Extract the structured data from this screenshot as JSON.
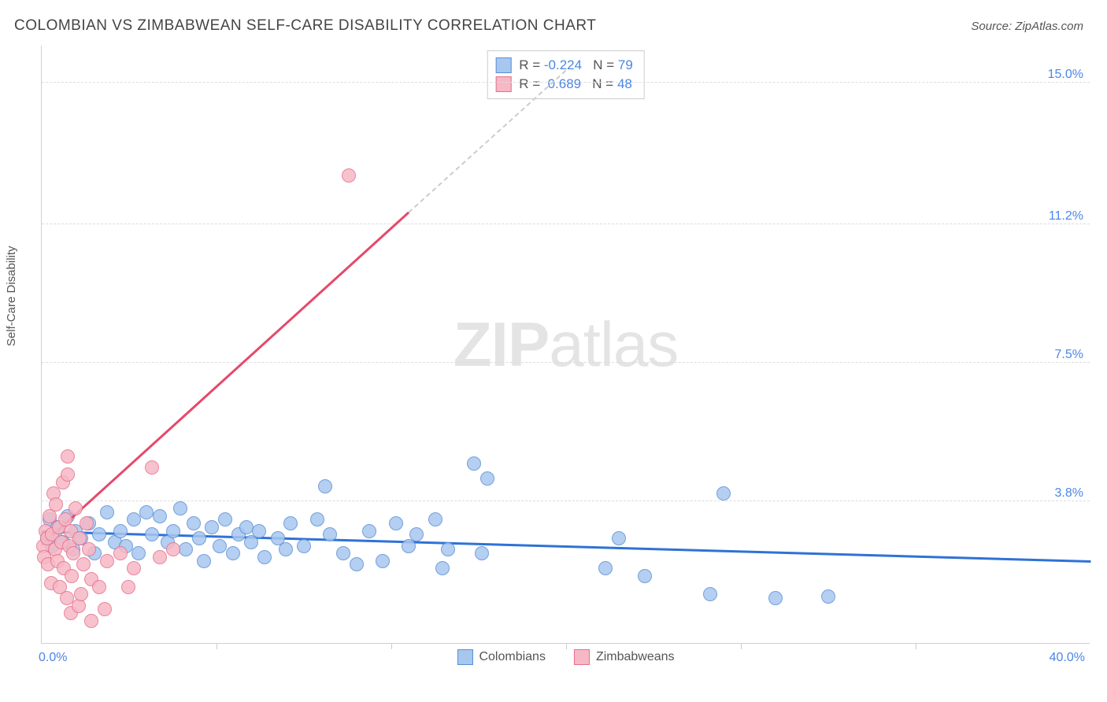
{
  "header": {
    "title": "COLOMBIAN VS ZIMBABWEAN SELF-CARE DISABILITY CORRELATION CHART",
    "source_prefix": "Source: ",
    "source_name": "ZipAtlas.com"
  },
  "watermark": {
    "zip": "ZIP",
    "atlas": "atlas"
  },
  "chart": {
    "type": "scatter",
    "background_color": "#ffffff",
    "grid_color": "#dddddd",
    "axis_color": "#d0d0d0",
    "ylabel": "Self-Care Disability",
    "label_fontsize": 15,
    "tick_color": "#4a86e8",
    "tick_fontsize": 16,
    "xlim": [
      0.0,
      40.0
    ],
    "ylim": [
      0.0,
      16.0
    ],
    "x_ticks_minor": [
      6.67,
      13.33,
      20.0,
      26.67,
      33.33
    ],
    "x_tick_labels": {
      "min": "0.0%",
      "max": "40.0%"
    },
    "y_ticks": [
      {
        "value": 3.8,
        "label": "3.8%"
      },
      {
        "value": 7.5,
        "label": "7.5%"
      },
      {
        "value": 11.2,
        "label": "11.2%"
      },
      {
        "value": 15.0,
        "label": "15.0%"
      }
    ],
    "marker_radius": 9,
    "marker_border_width": 1,
    "marker_fill_opacity": 0.35,
    "series": [
      {
        "name": "Colombians",
        "color_fill": "#a7c7ef",
        "color_border": "#5b8fd6",
        "R": "-0.224",
        "N": "79",
        "trend": {
          "x1": 0.0,
          "y1": 2.95,
          "x2": 40.0,
          "y2": 2.15,
          "color": "#2f72d6",
          "width": 3,
          "dash_after_x": 40.0
        },
        "points": [
          [
            0.2,
            2.8
          ],
          [
            0.3,
            3.3
          ],
          [
            0.4,
            2.6
          ],
          [
            0.5,
            2.9
          ],
          [
            0.6,
            3.1
          ],
          [
            0.8,
            2.7
          ],
          [
            1.0,
            3.4
          ],
          [
            1.2,
            2.5
          ],
          [
            1.3,
            3.0
          ],
          [
            1.5,
            2.8
          ],
          [
            1.8,
            3.2
          ],
          [
            2.0,
            2.4
          ],
          [
            2.2,
            2.9
          ],
          [
            2.5,
            3.5
          ],
          [
            2.8,
            2.7
          ],
          [
            3.0,
            3.0
          ],
          [
            3.2,
            2.6
          ],
          [
            3.5,
            3.3
          ],
          [
            3.7,
            2.4
          ],
          [
            4.0,
            3.5
          ],
          [
            4.2,
            2.9
          ],
          [
            4.5,
            3.4
          ],
          [
            4.8,
            2.7
          ],
          [
            5.0,
            3.0
          ],
          [
            5.3,
            3.6
          ],
          [
            5.5,
            2.5
          ],
          [
            5.8,
            3.2
          ],
          [
            6.0,
            2.8
          ],
          [
            6.2,
            2.2
          ],
          [
            6.5,
            3.1
          ],
          [
            6.8,
            2.6
          ],
          [
            7.0,
            3.3
          ],
          [
            7.3,
            2.4
          ],
          [
            7.5,
            2.9
          ],
          [
            7.8,
            3.1
          ],
          [
            8.0,
            2.7
          ],
          [
            8.3,
            3.0
          ],
          [
            8.5,
            2.3
          ],
          [
            9.0,
            2.8
          ],
          [
            9.3,
            2.5
          ],
          [
            9.5,
            3.2
          ],
          [
            10.0,
            2.6
          ],
          [
            10.5,
            3.3
          ],
          [
            10.8,
            4.2
          ],
          [
            11.0,
            2.9
          ],
          [
            11.5,
            2.4
          ],
          [
            12.0,
            2.1
          ],
          [
            12.5,
            3.0
          ],
          [
            13.0,
            2.2
          ],
          [
            13.5,
            3.2
          ],
          [
            14.0,
            2.6
          ],
          [
            14.3,
            2.9
          ],
          [
            15.0,
            3.3
          ],
          [
            15.3,
            2.0
          ],
          [
            15.5,
            2.5
          ],
          [
            16.5,
            4.8
          ],
          [
            16.8,
            2.4
          ],
          [
            17.0,
            4.4
          ],
          [
            21.5,
            2.0
          ],
          [
            22.0,
            2.8
          ],
          [
            23.0,
            1.8
          ],
          [
            25.5,
            1.3
          ],
          [
            26.0,
            4.0
          ],
          [
            28.0,
            1.2
          ],
          [
            30.0,
            1.25
          ]
        ]
      },
      {
        "name": "Zimbabweans",
        "color_fill": "#f6b8c5",
        "color_border": "#e5718b",
        "R": "0.689",
        "N": "48",
        "trend": {
          "x1": 0.0,
          "y1": 2.6,
          "x2": 14.0,
          "y2": 11.5,
          "color": "#e5496b",
          "width": 2.5,
          "dash_after_x": 14.0,
          "dash_x2": 20.0,
          "dash_y2": 15.3
        },
        "points": [
          [
            0.05,
            2.6
          ],
          [
            0.1,
            2.3
          ],
          [
            0.15,
            3.0
          ],
          [
            0.2,
            2.8
          ],
          [
            0.25,
            2.1
          ],
          [
            0.3,
            3.4
          ],
          [
            0.35,
            1.6
          ],
          [
            0.4,
            2.9
          ],
          [
            0.45,
            4.0
          ],
          [
            0.5,
            2.5
          ],
          [
            0.55,
            3.7
          ],
          [
            0.6,
            2.2
          ],
          [
            0.65,
            3.1
          ],
          [
            0.7,
            1.5
          ],
          [
            0.75,
            2.7
          ],
          [
            0.8,
            4.3
          ],
          [
            0.85,
            2.0
          ],
          [
            0.9,
            3.3
          ],
          [
            0.95,
            1.2
          ],
          [
            1.0,
            5.0
          ],
          [
            1.0,
            4.5
          ],
          [
            1.05,
            2.6
          ],
          [
            1.1,
            0.8
          ],
          [
            1.1,
            3.0
          ],
          [
            1.15,
            1.8
          ],
          [
            1.2,
            2.4
          ],
          [
            1.3,
            3.6
          ],
          [
            1.4,
            1.0
          ],
          [
            1.45,
            2.8
          ],
          [
            1.5,
            1.3
          ],
          [
            1.6,
            2.1
          ],
          [
            1.7,
            3.2
          ],
          [
            1.8,
            2.5
          ],
          [
            1.9,
            0.6
          ],
          [
            1.9,
            1.7
          ],
          [
            2.2,
            1.5
          ],
          [
            2.4,
            0.9
          ],
          [
            2.5,
            2.2
          ],
          [
            3.0,
            2.4
          ],
          [
            3.3,
            1.5
          ],
          [
            3.5,
            2.0
          ],
          [
            4.2,
            4.7
          ],
          [
            4.5,
            2.3
          ],
          [
            5.0,
            2.5
          ],
          [
            11.7,
            12.5
          ]
        ]
      }
    ]
  },
  "legend_top": {
    "r_label": "R = ",
    "n_label": "N = "
  },
  "legend_bottom": {
    "items": [
      "Colombians",
      "Zimbabweans"
    ]
  }
}
